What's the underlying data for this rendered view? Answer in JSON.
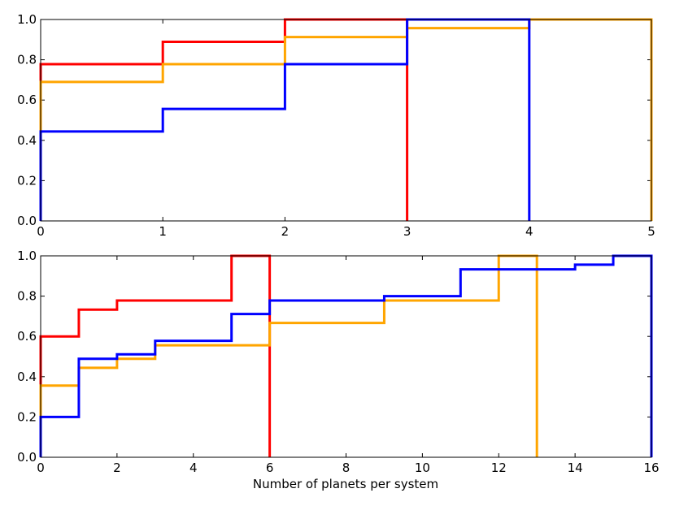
{
  "chart_data": [
    {
      "type": "step",
      "xlim": [
        0,
        5
      ],
      "ylim": [
        0,
        1
      ],
      "xticks": [
        "0",
        "1",
        "2",
        "3",
        "4",
        "5"
      ],
      "yticks": [
        "0.0",
        "0.2",
        "0.4",
        "0.6",
        "0.8",
        "1.0"
      ],
      "xlabel": "",
      "ylabel": "",
      "series": [
        {
          "color": "#ff0000",
          "points": [
            [
              0,
              0
            ],
            [
              0,
              0.778
            ],
            [
              1,
              0.778
            ],
            [
              1,
              0.889
            ],
            [
              2,
              0.889
            ],
            [
              2,
              1.0
            ],
            [
              3,
              1.0
            ],
            [
              3,
              0
            ]
          ]
        },
        {
          "color": "#ffa500",
          "points": [
            [
              0,
              0
            ],
            [
              0,
              0.69
            ],
            [
              1,
              0.69
            ],
            [
              1,
              0.778
            ],
            [
              2,
              0.778
            ],
            [
              2,
              0.913
            ],
            [
              3,
              0.913
            ],
            [
              3,
              0.957
            ],
            [
              4,
              0.957
            ],
            [
              4,
              1.0
            ],
            [
              5,
              1.0
            ],
            [
              5,
              0
            ]
          ]
        },
        {
          "color": "#0000ff",
          "points": [
            [
              0,
              0
            ],
            [
              0,
              0.444
            ],
            [
              1,
              0.444
            ],
            [
              1,
              0.556
            ],
            [
              2,
              0.556
            ],
            [
              2,
              0.778
            ],
            [
              3,
              0.778
            ],
            [
              3,
              1.0
            ],
            [
              4,
              1.0
            ],
            [
              4,
              0
            ]
          ]
        }
      ]
    },
    {
      "type": "step",
      "xlim": [
        0,
        16
      ],
      "ylim": [
        0,
        1
      ],
      "xticks": [
        "0",
        "2",
        "4",
        "6",
        "8",
        "10",
        "12",
        "14",
        "16"
      ],
      "yticks": [
        "0.0",
        "0.2",
        "0.4",
        "0.6",
        "0.8",
        "1.0"
      ],
      "xlabel": "Number of planets per system",
      "ylabel": "",
      "series": [
        {
          "color": "#ff0000",
          "points": [
            [
              0,
              0
            ],
            [
              0,
              0.6
            ],
            [
              1,
              0.6
            ],
            [
              1,
              0.733
            ],
            [
              2,
              0.733
            ],
            [
              2,
              0.778
            ],
            [
              5,
              0.778
            ],
            [
              5,
              1.0
            ],
            [
              6,
              1.0
            ],
            [
              6,
              0
            ]
          ]
        },
        {
          "color": "#ffa500",
          "points": [
            [
              0,
              0
            ],
            [
              0,
              0.356
            ],
            [
              1,
              0.356
            ],
            [
              1,
              0.444
            ],
            [
              2,
              0.444
            ],
            [
              2,
              0.489
            ],
            [
              3,
              0.489
            ],
            [
              3,
              0.556
            ],
            [
              6,
              0.556
            ],
            [
              6,
              0.667
            ],
            [
              9,
              0.667
            ],
            [
              9,
              0.778
            ],
            [
              12,
              0.778
            ],
            [
              12,
              1.0
            ],
            [
              13,
              1.0
            ],
            [
              13,
              0
            ]
          ]
        },
        {
          "color": "#0000ff",
          "points": [
            [
              0,
              0
            ],
            [
              0,
              0.2
            ],
            [
              1,
              0.2
            ],
            [
              1,
              0.489
            ],
            [
              2,
              0.489
            ],
            [
              2,
              0.511
            ],
            [
              3,
              0.511
            ],
            [
              3,
              0.578
            ],
            [
              5,
              0.578
            ],
            [
              5,
              0.711
            ],
            [
              6,
              0.711
            ],
            [
              6,
              0.778
            ],
            [
              9,
              0.778
            ],
            [
              9,
              0.8
            ],
            [
              11,
              0.8
            ],
            [
              11,
              0.933
            ],
            [
              14,
              0.933
            ],
            [
              14,
              0.956
            ],
            [
              15,
              0.956
            ],
            [
              15,
              1.0
            ],
            [
              16,
              1.0
            ],
            [
              16,
              0
            ]
          ]
        }
      ]
    }
  ]
}
